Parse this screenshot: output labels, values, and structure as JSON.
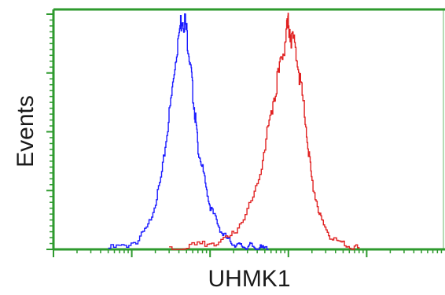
{
  "chart_data": {
    "type": "line",
    "title": "",
    "xlabel": "UHMK1",
    "ylabel": "Events",
    "x_scale": "log",
    "xlim": [
      0.1,
      10000
    ],
    "ylim": [
      0,
      100
    ],
    "grid": false,
    "legend": "none",
    "colors": {
      "axis": "#2e9a2e",
      "series_1": "#1a1aff",
      "series_2": "#e02020"
    },
    "series": [
      {
        "color": "#1a1aff",
        "x": [
          0.5,
          0.8,
          1.2,
          1.6,
          2.0,
          2.4,
          2.8,
          3.2,
          3.6,
          4.0,
          4.4,
          4.8,
          5.2,
          5.6,
          6.0,
          6.5,
          7.0,
          8.0,
          9.0,
          10.0,
          12.0,
          14.0,
          17.0,
          20.0,
          24.0,
          28.0,
          33.0,
          38.0,
          45.0,
          55.0
        ],
        "y": [
          0.5,
          1.5,
          4,
          10,
          20,
          32,
          50,
          65,
          82,
          92,
          100,
          96,
          88,
          78,
          66,
          55,
          43,
          34,
          25,
          18,
          12,
          7,
          4,
          2.5,
          1.5,
          1,
          1.5,
          0.8,
          0.4,
          0.2
        ]
      },
      {
        "color": "#e02020",
        "x": [
          3.0,
          5.0,
          8.0,
          12.0,
          18.0,
          25.0,
          35.0,
          45.0,
          55.0,
          65.0,
          75.0,
          85.0,
          95.0,
          100.0,
          110.0,
          125.0,
          140.0,
          160.0,
          180.0,
          200.0,
          240.0,
          280.0,
          350.0,
          450.0,
          600.0,
          800.0
        ],
        "y": [
          0.3,
          1,
          2,
          3,
          5,
          12,
          22,
          36,
          52,
          65,
          75,
          84,
          92,
          96,
          90,
          84,
          72,
          58,
          42,
          28,
          17,
          10,
          5,
          2.5,
          1,
          0.3
        ]
      }
    ]
  }
}
